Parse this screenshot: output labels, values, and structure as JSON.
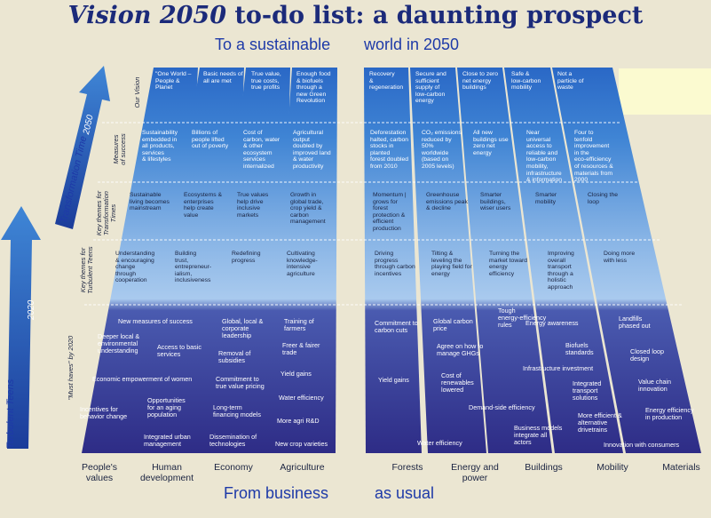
{
  "title_part1": "Vision 2050",
  "title_part2": " to-do list: a daunting prospect",
  "subtitle_left": "To a sustainable",
  "subtitle_right": "world in 2050",
  "bottom_left": "From business",
  "bottom_right": "as usual",
  "arrows": {
    "transformation": "Transformation Time",
    "turbulent": "Turbulent Teens",
    "year_2050": "2050",
    "year_2020": "2020"
  },
  "row_labels": {
    "vision": "Our Vision",
    "measures": "Measures\nof success",
    "transformation": "Key themes for\nTransformation\nTimes",
    "turbulent": "Key themes for\nTurbulent Teens",
    "musthaves": "\"Must haves\" by 2020"
  },
  "columns": [
    "People's\nvalues",
    "Human\ndevelopment",
    "Economy",
    "Agriculture",
    "Forests",
    "Energy and\npower",
    "Buildings",
    "Mobility",
    "Materials"
  ],
  "grid": {
    "vision": [
      "\"One World –\nPeople &\nPlanet",
      "Basic needs of\nall are met",
      "True value,\ntrue costs,\ntrue profits",
      "Enough food\n& biofuels\nthrough a\nnew Green\nRevolution",
      "Recovery\n&\nregeneration",
      "Secure and\nsufficient\nsupply of\nlow-carbon\nenergy",
      "Close to zero\nnet energy\nbuildings",
      "Safe &\nlow-carbon\nmobility",
      "Not a\nparticle of\nwaste"
    ],
    "measures": [
      "Sustainability\nembedded in\nall products,\nservices\n& lifestyles",
      "Billions of\npeople lifted\nout of poverty",
      "Cost of\ncarbon, water\n& other\necosystem\nservices\ninternalized",
      "Agricultural\noutput\ndoubled by\nimproved land\n& water\nproductivity",
      "Deforestation\nhalted, carbon\nstocks in\nplanted\nforest doubled\nfrom 2010",
      "CO₂ emissions\nreduced by\n50%\nworldwide\n(based on\n2005 levels)",
      "All new\nbuildings use\nzero net\nenergy",
      "Near\nuniversal\naccess to\nreliable and\nlow-carbon\nmobility,\ninfrastructure\n& information",
      "Four to\ntenfold\nimprovement\nin the\neco-efficiency\nof resources &\nmaterials from\n2000"
    ],
    "transformation": [
      "Sustainable\nliving becomes\nmainstream",
      "Ecosystems &\nenterprises\nhelp create\nvalue",
      "True values\nhelp drive\ninclusive\nmarkets",
      "Growth in\nglobal trade,\ncrop yield &\ncarbon\nmanagement",
      "Momentum |\ngrows for\nforest\nprotection &\nefficient\nproduction",
      "Greenhouse\nemissions peak\n& decline",
      "Smarter\nbuildings,\nwiser users",
      "Smarter\nmobility",
      "Closing the\nloop"
    ],
    "turbulent": [
      "Understanding\n& encouraging\nchange\nthrough\ncooperation",
      "Building\ntrust,\nentrepreneur-\nialism,\ninclusiveness",
      "Redefining\nprogress",
      "Cultivating\nknowledge-\nintensive\nagriculture",
      "Driving\nprogress\nthrough carbon\nincentives",
      "Tilting &\nleveling the\nplaying field for\nenergy",
      "Turning the\nmarket toward\nenergy\nefficiency",
      "Improving\noverall\ntransport\nthrough a\nholistic\napproach",
      "Doing more\nwith less"
    ]
  },
  "must_haves": [
    "New measures of success",
    "Deeper local &\nenvironmental\nunderstanding",
    "Access to basic\nservices",
    "Economic empowerment of women",
    "Incentives for\nbehavior change",
    "Opportunities\nfor an aging\npopulation",
    "Integrated urban\nmanagement",
    "Global, local &\ncorporate\nleadership",
    "Removal of\nsubsidies",
    "Commitment to\ntrue value pricing",
    "Long-term\nfinancing models",
    "Dissemination of\ntechnologies",
    "Training of\nfarmers",
    "Freer & fairer\ntrade",
    "Yield gains",
    "Water efficiency",
    "More agri R&D",
    "New crop varieties",
    "Commitment to\ncarbon cuts",
    "Yield gains",
    "Water efficiency",
    "Global carbon\nprice",
    "Agree on how to\nmanage GHGs",
    "Cost of\nrenewables\nlowered",
    "Demand-side efficiency",
    "Tough\nenergy-efficiency\nrules",
    "Energy awareness",
    "Infrastructure investment",
    "Business models\nintegrate all\nactors",
    "Biofuels\nstandards",
    "Integrated\ntransport\nsolutions",
    "More efficient &\nalternative\ndrivetrains",
    "Landfills\nphased out",
    "Closed loop\ndesign",
    "Value chain\ninnovation",
    "Energy efficiency\nin production",
    "Innovation with consumers"
  ]
}
